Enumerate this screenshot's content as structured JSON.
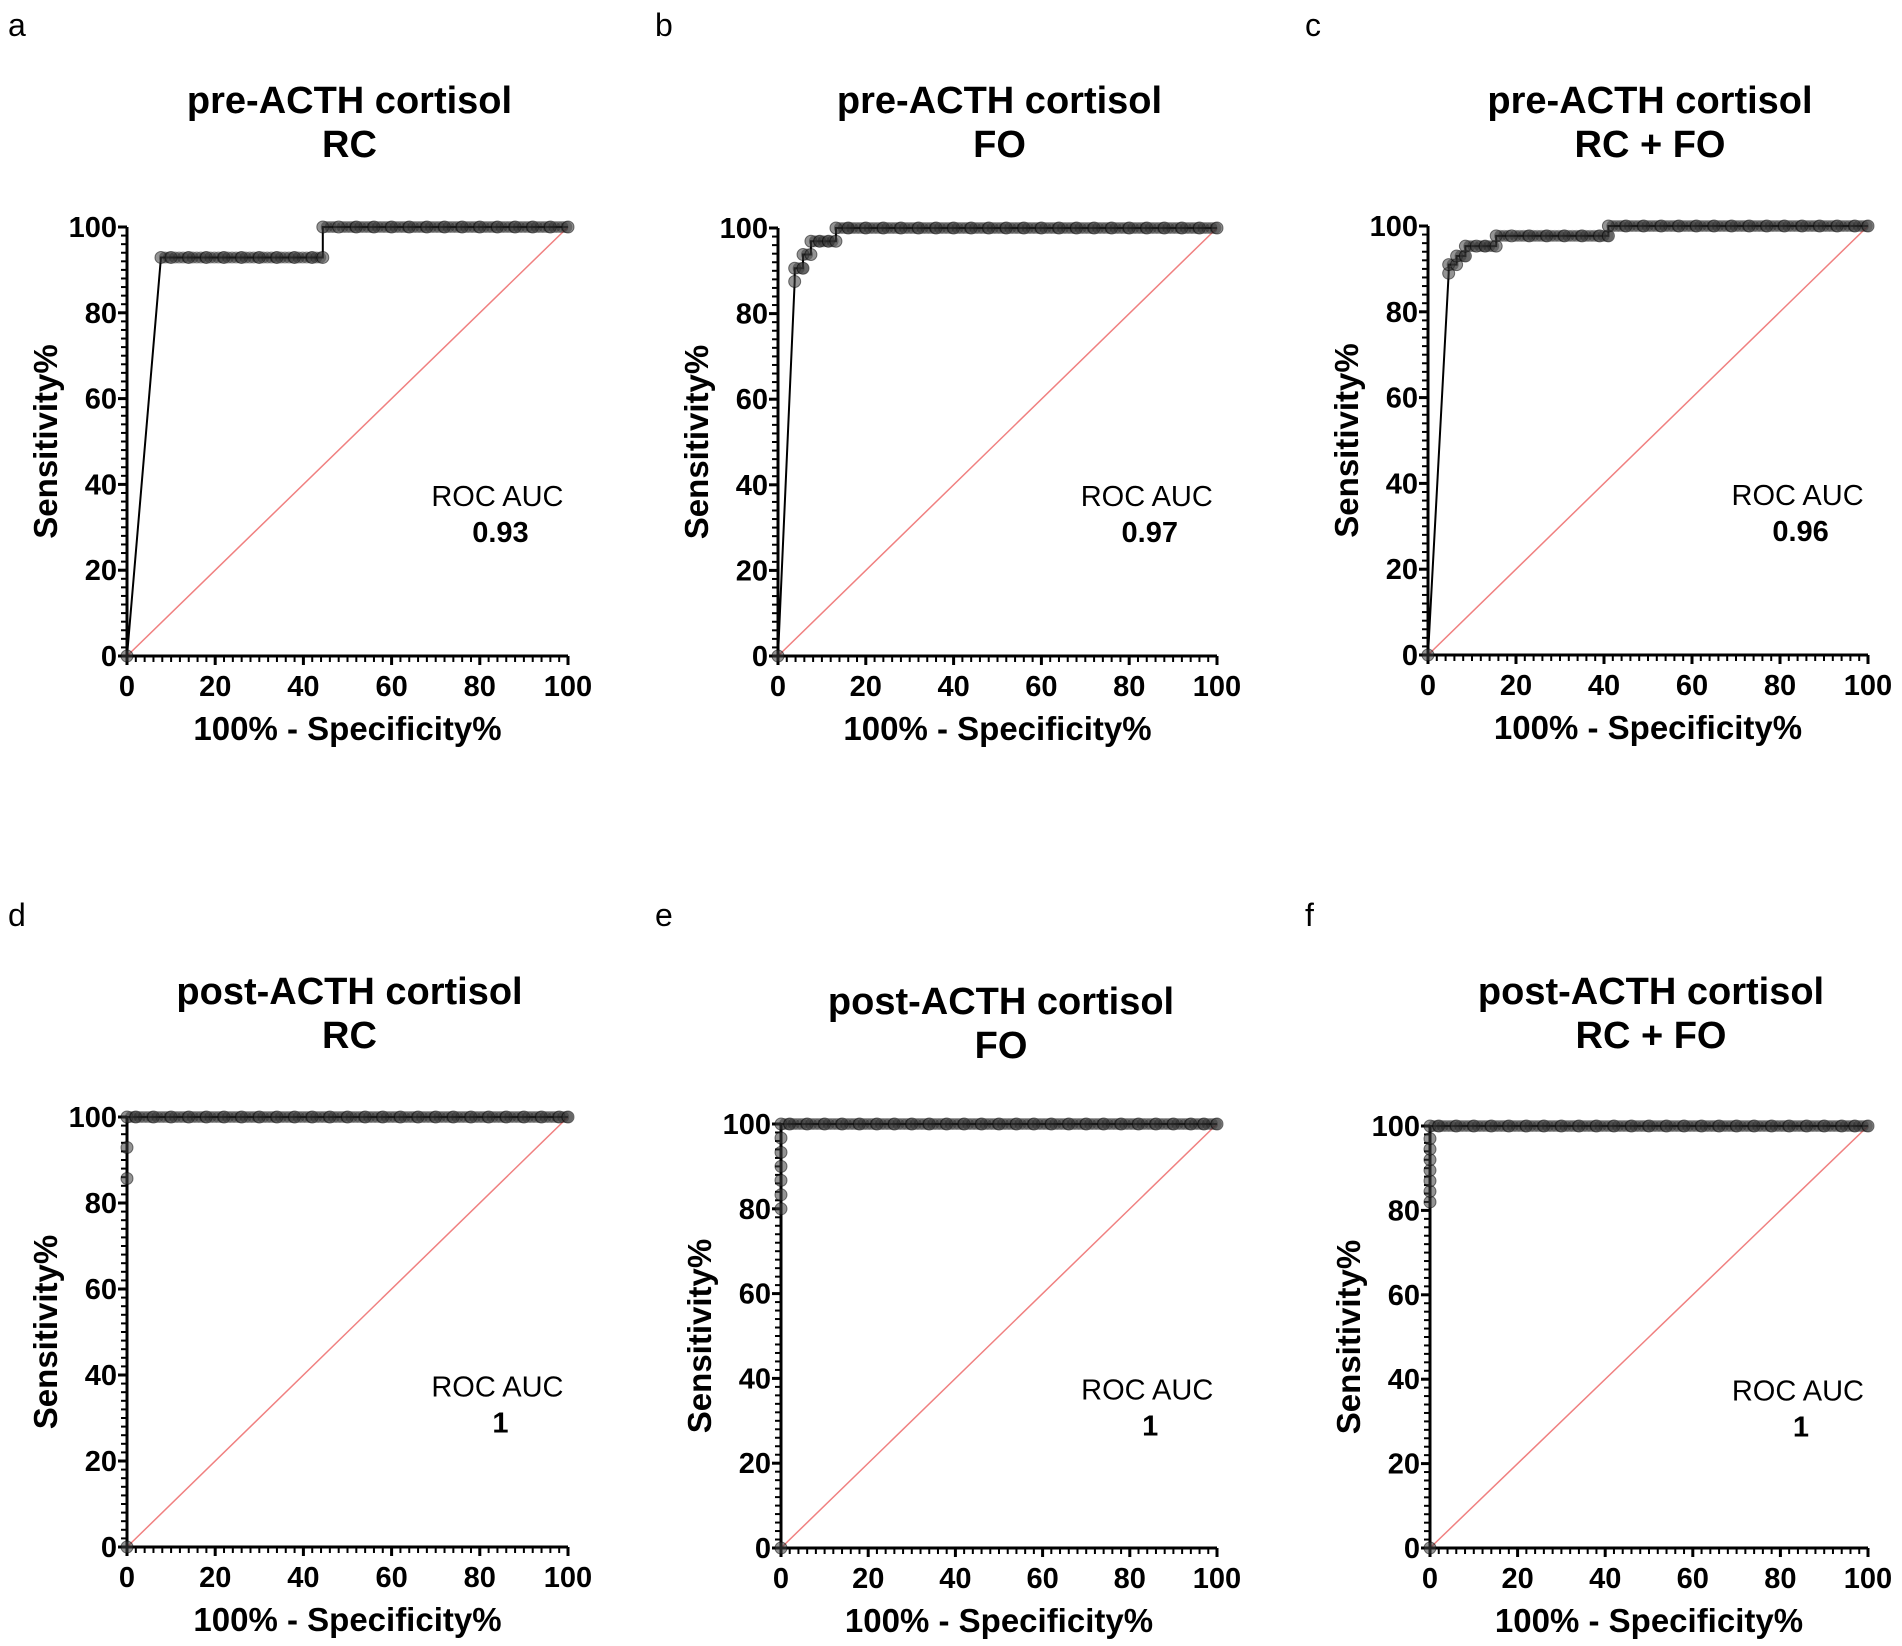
{
  "chart_data": [
    {
      "type": "line",
      "panel": "a",
      "title": [
        "pre-ACTH cortisol",
        "RC"
      ],
      "xlabel": "100% - Specificity%",
      "ylabel": "Sensitivity%",
      "xlim": [
        0,
        100
      ],
      "ylim": [
        0,
        100
      ],
      "xticks": [
        "0",
        "20",
        "40",
        "60",
        "80",
        "100"
      ],
      "yticks": [
        "0",
        "20",
        "40",
        "60",
        "80",
        "100"
      ],
      "annotation": {
        "label": "ROC AUC",
        "value": "0.93"
      },
      "reference_line_color": "#f08080",
      "curve_color": "#000000",
      "points": [
        [
          0,
          0
        ],
        [
          7.7,
          92.9
        ],
        [
          10,
          92.9
        ],
        [
          14,
          92.9
        ],
        [
          18,
          92.9
        ],
        [
          22,
          92.9
        ],
        [
          26,
          92.9
        ],
        [
          30,
          92.9
        ],
        [
          34,
          92.9
        ],
        [
          38,
          92.9
        ],
        [
          42,
          92.9
        ],
        [
          44.4,
          92.9
        ],
        [
          44.4,
          100
        ],
        [
          48,
          100
        ],
        [
          52,
          100
        ],
        [
          56,
          100
        ],
        [
          60,
          100
        ],
        [
          64,
          100
        ],
        [
          68,
          100
        ],
        [
          72,
          100
        ],
        [
          76,
          100
        ],
        [
          80,
          100
        ],
        [
          84,
          100
        ],
        [
          88,
          100
        ],
        [
          92,
          100
        ],
        [
          96,
          100
        ],
        [
          100,
          100
        ]
      ]
    },
    {
      "type": "line",
      "panel": "b",
      "title": [
        "pre-ACTH cortisol",
        "FO"
      ],
      "xlabel": "100% - Specificity%",
      "ylabel": "Sensitivity%",
      "xlim": [
        0,
        100
      ],
      "ylim": [
        0,
        100
      ],
      "xticks": [
        "0",
        "20",
        "40",
        "60",
        "80",
        "100"
      ],
      "yticks": [
        "0",
        "20",
        "40",
        "60",
        "80",
        "100"
      ],
      "annotation": {
        "label": "ROC AUC",
        "value": "0.97"
      },
      "reference_line_color": "#f08080",
      "curve_color": "#000000",
      "points": [
        [
          0,
          0
        ],
        [
          3.8,
          87.5
        ],
        [
          3.8,
          90.6
        ],
        [
          5.7,
          90.6
        ],
        [
          5.7,
          93.8
        ],
        [
          7.5,
          93.8
        ],
        [
          7.5,
          96.9
        ],
        [
          9.5,
          96.9
        ],
        [
          11.5,
          96.9
        ],
        [
          13.2,
          96.9
        ],
        [
          13.2,
          100
        ],
        [
          16,
          100
        ],
        [
          20,
          100
        ],
        [
          24,
          100
        ],
        [
          28,
          100
        ],
        [
          32,
          100
        ],
        [
          36,
          100
        ],
        [
          40,
          100
        ],
        [
          44,
          100
        ],
        [
          48,
          100
        ],
        [
          52,
          100
        ],
        [
          56,
          100
        ],
        [
          60,
          100
        ],
        [
          64,
          100
        ],
        [
          68,
          100
        ],
        [
          72,
          100
        ],
        [
          76,
          100
        ],
        [
          80,
          100
        ],
        [
          84,
          100
        ],
        [
          88,
          100
        ],
        [
          92,
          100
        ],
        [
          96,
          100
        ],
        [
          100,
          100
        ]
      ]
    },
    {
      "type": "line",
      "panel": "c",
      "title": [
        "pre-ACTH cortisol",
        "RC + FO"
      ],
      "xlabel": "100% - Specificity%",
      "ylabel": "Sensitivity%",
      "xlim": [
        0,
        100
      ],
      "ylim": [
        0,
        100
      ],
      "xticks": [
        "0",
        "20",
        "40",
        "60",
        "80",
        "100"
      ],
      "yticks": [
        "0",
        "20",
        "40",
        "60",
        "80",
        "100"
      ],
      "annotation": {
        "label": "ROC AUC",
        "value": "0.96"
      },
      "reference_line_color": "#f08080",
      "curve_color": "#000000",
      "points": [
        [
          0,
          0
        ],
        [
          4.7,
          89
        ],
        [
          4.7,
          91
        ],
        [
          6.5,
          91
        ],
        [
          6.5,
          93
        ],
        [
          8.5,
          93
        ],
        [
          8.5,
          95.3
        ],
        [
          11,
          95.3
        ],
        [
          13,
          95.3
        ],
        [
          15.5,
          95.3
        ],
        [
          15.5,
          97.7
        ],
        [
          19,
          97.7
        ],
        [
          23,
          97.7
        ],
        [
          27,
          97.7
        ],
        [
          31,
          97.7
        ],
        [
          35,
          97.7
        ],
        [
          39,
          97.7
        ],
        [
          41,
          97.7
        ],
        [
          41,
          100
        ],
        [
          45,
          100
        ],
        [
          49,
          100
        ],
        [
          53,
          100
        ],
        [
          57,
          100
        ],
        [
          61,
          100
        ],
        [
          65,
          100
        ],
        [
          69,
          100
        ],
        [
          73,
          100
        ],
        [
          77,
          100
        ],
        [
          81,
          100
        ],
        [
          85,
          100
        ],
        [
          89,
          100
        ],
        [
          93,
          100
        ],
        [
          97,
          100
        ],
        [
          100,
          100
        ]
      ]
    },
    {
      "type": "line",
      "panel": "d",
      "title": [
        "post-ACTH cortisol",
        "RC"
      ],
      "xlabel": "100% - Specificity%",
      "ylabel": "Sensitivity%",
      "xlim": [
        0,
        100
      ],
      "ylim": [
        0,
        100
      ],
      "xticks": [
        "0",
        "20",
        "40",
        "60",
        "80",
        "100"
      ],
      "yticks": [
        "0",
        "20",
        "40",
        "60",
        "80",
        "100"
      ],
      "annotation": {
        "label": "ROC AUC",
        "value": "1"
      },
      "reference_line_color": "#f08080",
      "curve_color": "#000000",
      "points": [
        [
          0,
          0
        ],
        [
          0,
          85.7
        ],
        [
          0,
          92.9
        ],
        [
          0,
          100
        ],
        [
          2,
          100
        ],
        [
          6,
          100
        ],
        [
          10,
          100
        ],
        [
          14,
          100
        ],
        [
          18,
          100
        ],
        [
          22,
          100
        ],
        [
          26,
          100
        ],
        [
          30,
          100
        ],
        [
          34,
          100
        ],
        [
          38,
          100
        ],
        [
          42,
          100
        ],
        [
          46,
          100
        ],
        [
          50,
          100
        ],
        [
          54,
          100
        ],
        [
          58,
          100
        ],
        [
          62,
          100
        ],
        [
          66,
          100
        ],
        [
          70,
          100
        ],
        [
          74,
          100
        ],
        [
          78,
          100
        ],
        [
          82,
          100
        ],
        [
          86,
          100
        ],
        [
          90,
          100
        ],
        [
          94,
          100
        ],
        [
          98,
          100
        ],
        [
          100,
          100
        ]
      ]
    },
    {
      "type": "line",
      "panel": "e",
      "title": [
        "post-ACTH cortisol",
        "FO"
      ],
      "xlabel": "100% - Specificity%",
      "ylabel": "Sensitivity%",
      "xlim": [
        0,
        100
      ],
      "ylim": [
        0,
        100
      ],
      "xticks": [
        "0",
        "20",
        "40",
        "60",
        "80",
        "100"
      ],
      "yticks": [
        "0",
        "20",
        "40",
        "60",
        "80",
        "100"
      ],
      "annotation": {
        "label": "ROC AUC",
        "value": "1"
      },
      "reference_line_color": "#f08080",
      "curve_color": "#000000",
      "points": [
        [
          0,
          0
        ],
        [
          0,
          80
        ],
        [
          0,
          83.3
        ],
        [
          0,
          86.7
        ],
        [
          0,
          90
        ],
        [
          0,
          93.3
        ],
        [
          0,
          96.7
        ],
        [
          0,
          100
        ],
        [
          2,
          100
        ],
        [
          6,
          100
        ],
        [
          10,
          100
        ],
        [
          14,
          100
        ],
        [
          18,
          100
        ],
        [
          22,
          100
        ],
        [
          26,
          100
        ],
        [
          30,
          100
        ],
        [
          34,
          100
        ],
        [
          38,
          100
        ],
        [
          42,
          100
        ],
        [
          46,
          100
        ],
        [
          50,
          100
        ],
        [
          54,
          100
        ],
        [
          58,
          100
        ],
        [
          62,
          100
        ],
        [
          66,
          100
        ],
        [
          70,
          100
        ],
        [
          74,
          100
        ],
        [
          78,
          100
        ],
        [
          82,
          100
        ],
        [
          86,
          100
        ],
        [
          90,
          100
        ],
        [
          94,
          100
        ],
        [
          97,
          100
        ],
        [
          100,
          100
        ]
      ]
    },
    {
      "type": "line",
      "panel": "f",
      "title": [
        "post-ACTH cortisol",
        "RC + FO"
      ],
      "xlabel": "100% - Specificity%",
      "ylabel": "Sensitivity%",
      "xlim": [
        0,
        100
      ],
      "ylim": [
        0,
        100
      ],
      "xticks": [
        "0",
        "20",
        "40",
        "60",
        "80",
        "100"
      ],
      "yticks": [
        "0",
        "20",
        "40",
        "60",
        "80",
        "100"
      ],
      "annotation": {
        "label": "ROC AUC",
        "value": "1"
      },
      "reference_line_color": "#f08080",
      "curve_color": "#000000",
      "points": [
        [
          0,
          0
        ],
        [
          0,
          82
        ],
        [
          0,
          84.5
        ],
        [
          0,
          87
        ],
        [
          0,
          89.5
        ],
        [
          0,
          92
        ],
        [
          0,
          94.5
        ],
        [
          0,
          97
        ],
        [
          0,
          100
        ],
        [
          2,
          100
        ],
        [
          6,
          100
        ],
        [
          10,
          100
        ],
        [
          14,
          100
        ],
        [
          18,
          100
        ],
        [
          22,
          100
        ],
        [
          26,
          100
        ],
        [
          30,
          100
        ],
        [
          34,
          100
        ],
        [
          38,
          100
        ],
        [
          42,
          100
        ],
        [
          46,
          100
        ],
        [
          50,
          100
        ],
        [
          54,
          100
        ],
        [
          58,
          100
        ],
        [
          62,
          100
        ],
        [
          66,
          100
        ],
        [
          70,
          100
        ],
        [
          74,
          100
        ],
        [
          78,
          100
        ],
        [
          82,
          100
        ],
        [
          86,
          100
        ],
        [
          90,
          100
        ],
        [
          94,
          100
        ],
        [
          97,
          100
        ],
        [
          100,
          100
        ]
      ]
    }
  ]
}
